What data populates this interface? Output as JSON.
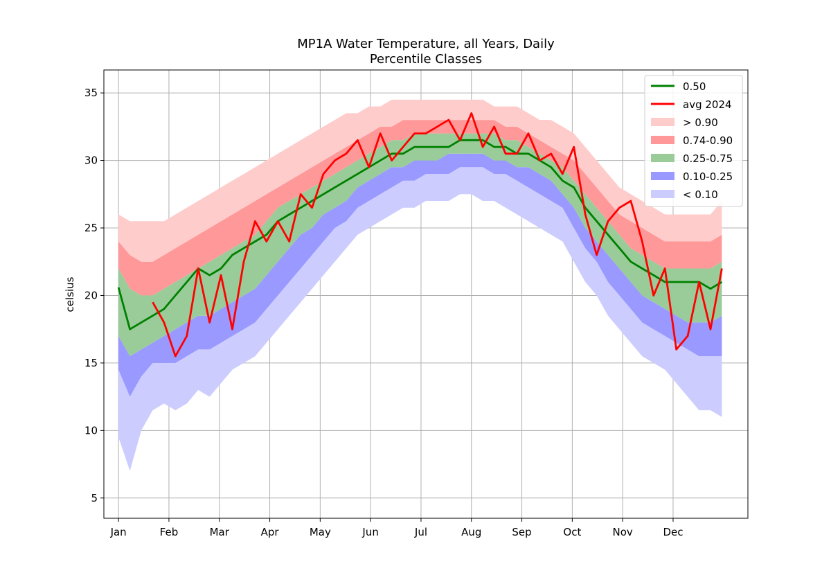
{
  "chart_data": {
    "type": "area",
    "title_line1": "MP1A Water Temperature, all Years, Daily",
    "title_line2": "Percentile Classes",
    "ylabel": "celsius",
    "xlabel": "",
    "xlim": [
      -8,
      388
    ],
    "ylim": [
      3.5,
      36.7
    ],
    "grid": true,
    "legend_position": "top-right",
    "x_ticks": [
      {
        "label": "Jan",
        "day": 1
      },
      {
        "label": "Feb",
        "day": 32
      },
      {
        "label": "Mar",
        "day": 63
      },
      {
        "label": "Apr",
        "day": 94
      },
      {
        "label": "May",
        "day": 125
      },
      {
        "label": "Jun",
        "day": 156
      },
      {
        "label": "Jul",
        "day": 187
      },
      {
        "label": "Aug",
        "day": 218
      },
      {
        "label": "Sep",
        "day": 249
      },
      {
        "label": "Oct",
        "day": 280
      },
      {
        "label": "Nov",
        "day": 311
      },
      {
        "label": "Dec",
        "day": 342
      }
    ],
    "y_ticks": [
      5,
      10,
      15,
      20,
      25,
      30,
      35
    ],
    "colors": {
      "median": "#008000",
      "avg": "#ff0000",
      "gt90": "#ffcccc",
      "p74_90": "#ff9999",
      "p25_75": "#99cc99",
      "p10_25": "#9999ff",
      "lt10": "#ccccff"
    },
    "legend": [
      {
        "label": "0.50",
        "kind": "line",
        "color": "#008000"
      },
      {
        "label": "avg 2024",
        "kind": "line",
        "color": "#ff0000"
      },
      {
        "label": "> 0.90",
        "kind": "patch",
        "color": "#ffcccc"
      },
      {
        "label": "0.74-0.90",
        "kind": "patch",
        "color": "#ff9999"
      },
      {
        "label": "0.25-0.75",
        "kind": "patch",
        "color": "#99cc99"
      },
      {
        "label": "0.10-0.25",
        "kind": "patch",
        "color": "#9999ff"
      },
      {
        "label": "< 0.10",
        "kind": "patch",
        "color": "#ccccff"
      }
    ],
    "x": [
      1,
      8,
      15,
      22,
      29,
      36,
      43,
      50,
      57,
      64,
      71,
      78,
      85,
      92,
      99,
      106,
      113,
      120,
      127,
      134,
      141,
      148,
      155,
      162,
      169,
      176,
      183,
      190,
      197,
      204,
      211,
      218,
      225,
      232,
      239,
      246,
      253,
      260,
      267,
      274,
      281,
      288,
      295,
      302,
      309,
      316,
      323,
      330,
      337,
      344,
      351,
      358,
      365,
      372
    ],
    "series": [
      {
        "name": "< 0.10 (min)",
        "values": [
          9.5,
          7.0,
          10.0,
          11.5,
          12.0,
          11.5,
          12.0,
          13.0,
          12.5,
          13.5,
          14.5,
          15.0,
          15.5,
          16.5,
          17.5,
          18.5,
          19.5,
          20.5,
          21.5,
          22.5,
          23.5,
          24.5,
          25.0,
          25.5,
          26.0,
          26.5,
          26.5,
          27.0,
          27.0,
          27.0,
          27.5,
          27.5,
          27.0,
          27.0,
          26.5,
          26.0,
          25.5,
          25.0,
          24.5,
          24.0,
          22.5,
          21.0,
          20.0,
          18.5,
          17.5,
          16.5,
          15.5,
          15.0,
          14.5,
          13.5,
          12.5,
          11.5,
          11.5,
          11.0
        ]
      },
      {
        "name": "0.10",
        "values": [
          14.5,
          12.5,
          14.0,
          15.0,
          15.0,
          15.0,
          15.5,
          16.0,
          16.0,
          16.5,
          17.0,
          17.5,
          18.0,
          19.0,
          20.0,
          21.0,
          22.0,
          23.0,
          24.0,
          25.0,
          25.5,
          26.5,
          27.0,
          27.5,
          28.0,
          28.5,
          28.5,
          29.0,
          29.0,
          29.0,
          29.5,
          29.5,
          29.5,
          29.0,
          29.0,
          28.5,
          28.0,
          27.5,
          27.0,
          26.5,
          25.0,
          23.5,
          22.5,
          21.0,
          20.0,
          19.0,
          18.0,
          17.5,
          17.0,
          16.5,
          16.0,
          15.5,
          15.5,
          15.5
        ]
      },
      {
        "name": "0.25",
        "values": [
          17.0,
          15.5,
          16.0,
          16.5,
          17.0,
          17.5,
          18.0,
          18.5,
          18.5,
          19.0,
          19.5,
          20.0,
          20.5,
          21.5,
          22.5,
          23.5,
          24.5,
          25.0,
          26.0,
          26.5,
          27.0,
          28.0,
          28.5,
          29.0,
          29.5,
          29.5,
          30.0,
          30.0,
          30.0,
          30.5,
          30.5,
          30.5,
          30.5,
          30.0,
          30.0,
          29.5,
          29.5,
          29.0,
          28.5,
          27.5,
          26.5,
          25.0,
          24.0,
          23.0,
          22.0,
          21.0,
          20.0,
          19.5,
          19.0,
          18.5,
          18.0,
          18.0,
          18.0,
          18.5
        ]
      },
      {
        "name": "0.74",
        "values": [
          22.0,
          20.5,
          20.0,
          20.0,
          20.5,
          21.0,
          21.5,
          22.0,
          22.5,
          23.0,
          23.5,
          24.0,
          24.5,
          25.5,
          26.5,
          27.0,
          27.5,
          28.0,
          28.5,
          29.0,
          29.5,
          30.0,
          30.5,
          31.0,
          31.5,
          31.5,
          32.0,
          32.0,
          32.0,
          32.0,
          32.0,
          32.0,
          32.0,
          32.0,
          31.5,
          31.5,
          31.0,
          30.5,
          30.0,
          29.5,
          28.5,
          27.5,
          26.5,
          25.5,
          24.5,
          23.5,
          23.0,
          22.5,
          22.0,
          22.0,
          22.0,
          22.0,
          22.0,
          22.5
        ]
      },
      {
        "name": "0.90",
        "values": [
          24.0,
          23.0,
          22.5,
          22.5,
          23.0,
          23.5,
          24.0,
          24.5,
          25.0,
          25.5,
          26.0,
          26.5,
          27.0,
          27.5,
          28.0,
          28.5,
          29.0,
          29.5,
          30.0,
          30.5,
          31.0,
          31.5,
          32.0,
          32.5,
          32.5,
          33.0,
          33.0,
          33.0,
          33.0,
          33.0,
          33.0,
          33.0,
          33.0,
          33.0,
          32.5,
          32.5,
          32.0,
          31.5,
          31.0,
          30.5,
          30.0,
          29.0,
          28.0,
          27.0,
          26.0,
          25.5,
          25.0,
          24.5,
          24.0,
          24.0,
          24.0,
          24.0,
          24.0,
          24.5
        ]
      },
      {
        "name": "> 0.90 (max)",
        "values": [
          26.0,
          25.5,
          25.5,
          25.5,
          25.5,
          26.0,
          26.5,
          27.0,
          27.5,
          28.0,
          28.5,
          29.0,
          29.5,
          30.0,
          30.5,
          31.0,
          31.5,
          32.0,
          32.5,
          33.0,
          33.5,
          33.5,
          34.0,
          34.0,
          34.5,
          34.5,
          34.5,
          34.5,
          34.5,
          34.5,
          34.5,
          34.5,
          34.5,
          34.0,
          34.0,
          34.0,
          33.5,
          33.0,
          33.0,
          32.5,
          32.0,
          31.0,
          30.0,
          29.0,
          28.0,
          27.5,
          27.0,
          26.5,
          26.0,
          26.0,
          26.0,
          26.0,
          26.0,
          27.0
        ]
      },
      {
        "name": "0.50",
        "values": [
          20.6,
          17.5,
          18.0,
          18.5,
          19.0,
          20.0,
          21.0,
          22.0,
          21.5,
          22.0,
          23.0,
          23.5,
          24.0,
          24.5,
          25.5,
          26.0,
          26.5,
          27.0,
          27.5,
          28.0,
          28.5,
          29.0,
          29.5,
          30.0,
          30.5,
          30.5,
          31.0,
          31.0,
          31.0,
          31.0,
          31.5,
          31.5,
          31.5,
          31.0,
          31.0,
          30.5,
          30.5,
          30.0,
          29.5,
          28.5,
          28.0,
          26.5,
          25.5,
          24.5,
          23.5,
          22.5,
          22.0,
          21.5,
          21.0,
          21.0,
          21.0,
          21.0,
          20.5,
          21.0
        ]
      },
      {
        "name": "avg 2024",
        "values": [
          null,
          null,
          null,
          19.5,
          18.0,
          15.5,
          17.0,
          22.0,
          18.0,
          21.5,
          17.5,
          22.5,
          25.5,
          24.0,
          25.5,
          24.0,
          27.5,
          26.5,
          29.0,
          30.0,
          30.5,
          31.5,
          29.5,
          32.0,
          30.0,
          31.0,
          32.0,
          32.0,
          32.5,
          33.0,
          31.5,
          33.5,
          31.0,
          32.5,
          30.5,
          30.5,
          32.0,
          30.0,
          30.5,
          29.0,
          31.0,
          26.0,
          23.0,
          25.5,
          26.5,
          27.0,
          24.0,
          20.0,
          22.0,
          16.0,
          17.0,
          21.0,
          17.5,
          22.0
        ]
      }
    ]
  }
}
